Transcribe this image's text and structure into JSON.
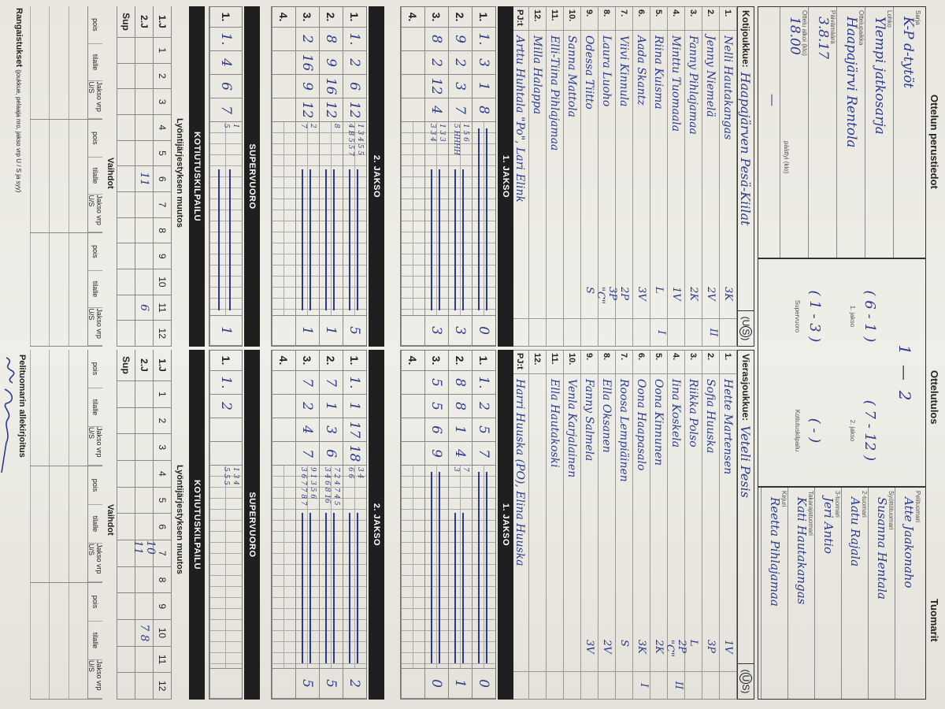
{
  "colors": {
    "ink": "#2c3a8c",
    "band": "#1f1f1f",
    "paper": "#ecebe4"
  },
  "header": {
    "title": "Ottelun perustiedot",
    "fields": [
      {
        "label": "Sarja",
        "value": "K-P d-tytöt"
      },
      {
        "label": "Lohko",
        "value": "Ylempi jatkosarja"
      },
      {
        "label": "Ottelupaikka",
        "value": "Haapajärvi Rentola"
      },
      {
        "label": "Päivämäärä",
        "value": "3.8.17"
      },
      {
        "label": "Ottelu alkoi (klo)",
        "value": "18.00"
      }
    ],
    "ended_label": "päättyi (klo)",
    "ended_value": "—"
  },
  "result": {
    "title": "Ottelutulos",
    "home": "1",
    "sep": "—",
    "visitor": "2",
    "periods": [
      {
        "label": "1. jakso",
        "value": "( 6 - 1 )"
      },
      {
        "label": "2. jakso",
        "value": "( 7 - 12 )"
      },
      {
        "label": "Supervuoro",
        "value": "( 1 - 3 )"
      },
      {
        "label": "Kotiutuskilpailu",
        "value": "(   -   )"
      }
    ]
  },
  "referees": {
    "title": "Tuomarit",
    "list": [
      {
        "label": "Pelituomari",
        "value": "Atte Jaakonaho"
      },
      {
        "label": "Syöttötuomari",
        "value": "Susanna Hentala"
      },
      {
        "label": "2-tuomari",
        "value": "Aatu Rajala"
      },
      {
        "label": "3-tuomari",
        "value": "Jeri Antio"
      },
      {
        "label": "Takarajatuomari",
        "value": "Kati Hautakangas"
      },
      {
        "label": "Kirjuri",
        "value": "Reetta Pihlajamaa"
      }
    ]
  },
  "home": {
    "label": "Kotijoukkue:",
    "name": "Haapajärven Pesä-Kiilat",
    "u": "U",
    "s": "S",
    "circled": "S",
    "players": [
      {
        "n": "1.",
        "name": "Nelli Hautakangas",
        "pos": "3K",
        "mark": ""
      },
      {
        "n": "2.",
        "name": "Jenny Niemelä",
        "pos": "2V",
        "mark": "II"
      },
      {
        "n": "3.",
        "name": "Fanny Pihlajamaa",
        "pos": "2K",
        "mark": ""
      },
      {
        "n": "4.",
        "name": "Minttu Tuomaala",
        "pos": "1V",
        "mark": ""
      },
      {
        "n": "5.",
        "name": "Riina Kuisma",
        "pos": "L",
        "mark": "I"
      },
      {
        "n": "6.",
        "name": "Aada Skantz",
        "pos": "3V",
        "mark": ""
      },
      {
        "n": "7.",
        "name": "Viivi Kinnula",
        "pos": "2P",
        "mark": ""
      },
      {
        "n": "8.",
        "name": "Laura Luoho",
        "pos": "3P \"C\"",
        "mark": ""
      },
      {
        "n": "9.",
        "name": "Odessa Tiitto",
        "pos": "S",
        "mark": ""
      },
      {
        "n": "10.",
        "name": "Sanna Mattola",
        "pos": "",
        "mark": ""
      },
      {
        "n": "11.",
        "name": "Elli-Tiina Pihlajamaa",
        "pos": "",
        "mark": ""
      },
      {
        "n": "12.",
        "name": "Milla Halappa",
        "pos": "",
        "mark": ""
      },
      {
        "n": "PJ:t",
        "name": "Arttu Huhtala \"Po\", Lari Elink",
        "pos": "",
        "mark": ""
      }
    ],
    "jakso1": [
      {
        "n": "1.",
        "cells": [
          "1.",
          "3",
          "1",
          "8"
        ],
        "marks": [
          "",
          ""
        ],
        "total": "0"
      },
      {
        "n": "2.",
        "cells": [
          "9",
          "2",
          "3",
          "7"
        ],
        "marks": [
          "1 5 6",
          "5 HHHH"
        ],
        "total": "3"
      },
      {
        "n": "3.",
        "cells": [
          "8",
          "2",
          "12",
          "4"
        ],
        "marks": [
          "1 3 3",
          "3 3 4"
        ],
        "total": "3"
      },
      {
        "n": "4.",
        "cells": [
          "",
          "",
          "",
          ""
        ],
        "marks": [
          "",
          ""
        ],
        "total": ""
      }
    ],
    "jakso2": [
      {
        "n": "1.",
        "cells": [
          "1.",
          "2",
          "6",
          "12"
        ],
        "marks": [
          "1 3 4 5 5",
          "4 B 5 5 7"
        ],
        "total": "5"
      },
      {
        "n": "2.",
        "cells": [
          "8",
          "9",
          "16",
          "12"
        ],
        "marks": [
          "8",
          ""
        ],
        "total": "1"
      },
      {
        "n": "3.",
        "cells": [
          "2",
          "16",
          "9",
          "12"
        ],
        "marks": [
          "2",
          "7"
        ],
        "total": "1"
      },
      {
        "n": "4.",
        "cells": [
          "",
          "",
          "",
          ""
        ],
        "marks": [
          "",
          ""
        ],
        "total": ""
      }
    ],
    "super": [
      {
        "n": "1.",
        "cells": [
          "1.",
          "4",
          "6",
          "7"
        ],
        "marks": [
          "1",
          "5"
        ],
        "total": "1"
      }
    ],
    "lineup": [
      {
        "label": "1.J",
        "cells": [
          "1",
          "2",
          "3",
          "4",
          "5",
          "6",
          "7",
          "8",
          "9",
          "10",
          "11",
          "12"
        ]
      },
      {
        "label": "2.J",
        "cells": [
          "",
          "",
          "",
          "",
          "",
          "11",
          "",
          "",
          "",
          "",
          "6",
          ""
        ]
      },
      {
        "label": "Sup",
        "cells": [
          "",
          "",
          "",
          "",
          "",
          "",
          "",
          "",
          "",
          "",
          "",
          ""
        ]
      }
    ],
    "bottom_label": "Rangaistukset",
    "bottom_note": "(joukkue, pelaaja nro, jakso vrp U / S ja syy)"
  },
  "visitor": {
    "label": "Vierasjoukkue:",
    "name": "Veteli Pesis",
    "u": "U",
    "s": "S",
    "circled": "U",
    "players": [
      {
        "n": "1.",
        "name": "Hette Martensen",
        "pos": "1V",
        "mark": ""
      },
      {
        "n": "2.",
        "name": "Sofia Huuska",
        "pos": "3P",
        "mark": ""
      },
      {
        "n": "3.",
        "name": "Riikka Polso",
        "pos": "L",
        "mark": ""
      },
      {
        "n": "4.",
        "name": "Iina Koskela",
        "pos": "2P \"C\"",
        "mark": "II"
      },
      {
        "n": "5.",
        "name": "Oona Kinnunen",
        "pos": "2K",
        "mark": ""
      },
      {
        "n": "6.",
        "name": "Oona Haapasalo",
        "pos": "3K",
        "mark": "I"
      },
      {
        "n": "7.",
        "name": "Roosa Lempiäinen",
        "pos": "S",
        "mark": ""
      },
      {
        "n": "8.",
        "name": "Ella Oksanen",
        "pos": "2V",
        "mark": ""
      },
      {
        "n": "9.",
        "name": "Fanny Salmela",
        "pos": "3V",
        "mark": ""
      },
      {
        "n": "10.",
        "name": "Venla Karjalainen",
        "pos": "",
        "mark": ""
      },
      {
        "n": "11.",
        "name": "Ella Hautakoski",
        "pos": "",
        "mark": ""
      },
      {
        "n": "12.",
        "name": "",
        "pos": "",
        "mark": ""
      },
      {
        "n": "PJ:t",
        "name": "Harri Huuska (PO), Elina Huuska",
        "pos": "",
        "mark": ""
      }
    ],
    "jakso1": [
      {
        "n": "1.",
        "cells": [
          "1.",
          "2",
          "5",
          "7"
        ],
        "marks": [
          "",
          ""
        ],
        "total": "0"
      },
      {
        "n": "2.",
        "cells": [
          "8",
          "8",
          "1",
          "4"
        ],
        "marks": [
          "7",
          "3"
        ],
        "total": "1"
      },
      {
        "n": "3.",
        "cells": [
          "5",
          "5",
          "6",
          "9"
        ],
        "marks": [
          "",
          ""
        ],
        "total": "0"
      },
      {
        "n": "4.",
        "cells": [
          "",
          "",
          "",
          ""
        ],
        "marks": [
          "",
          ""
        ],
        "total": ""
      }
    ],
    "jakso2": [
      {
        "n": "1.",
        "cells": [
          "1.",
          "1",
          "17",
          "18"
        ],
        "marks": [
          "3 4",
          "6 6"
        ],
        "total": "2"
      },
      {
        "n": "2.",
        "cells": [
          "7",
          "1",
          "3",
          "6"
        ],
        "marks": [
          "7 2 4 7 4 5",
          "3 4 6 8 16"
        ],
        "total": "5"
      },
      {
        "n": "3.",
        "cells": [
          "7",
          "2",
          "4",
          "7"
        ],
        "marks": [
          "9 1 3 5 6",
          "3 6 7 7 8 7"
        ],
        "total": "5"
      },
      {
        "n": "4.",
        "cells": [
          "",
          "",
          "",
          ""
        ],
        "marks": [
          "",
          ""
        ],
        "total": ""
      }
    ],
    "super": [
      {
        "n": "1.",
        "cells": [
          "1.",
          "2",
          "",
          ""
        ],
        "marks": [
          "1 3 4",
          "5 5 5"
        ],
        "total": ""
      }
    ],
    "lineup": [
      {
        "label": "1.J",
        "cells": [
          "1",
          "2",
          "3",
          "4",
          "5",
          "6",
          "7",
          "8",
          "9",
          "10",
          "11",
          "12"
        ]
      },
      {
        "label": "2.J",
        "cells": [
          "",
          "",
          "",
          "",
          "",
          "",
          "10 11",
          "",
          "",
          "7 8",
          "",
          ""
        ]
      },
      {
        "label": "Sup",
        "cells": [
          "",
          "",
          "",
          "",
          "",
          "",
          "",
          "",
          "",
          "",
          "",
          ""
        ]
      }
    ],
    "bottom_label": "Pelituomarin allekirjoitus",
    "signature": "Atte Jaakonaho"
  },
  "sections": {
    "jakso1": "1. JAKSO",
    "jakso2": "2. JAKSO",
    "super": "SUPERVUORO",
    "kotiutus": "KOTIUTUSKILPAILU",
    "lineup_title": "Lyöntijärjestyksen muutos",
    "subs_title": "Vaihdot",
    "subs_cols": [
      "pois",
      "tilalle",
      "Jakso vrp U/S"
    ]
  }
}
